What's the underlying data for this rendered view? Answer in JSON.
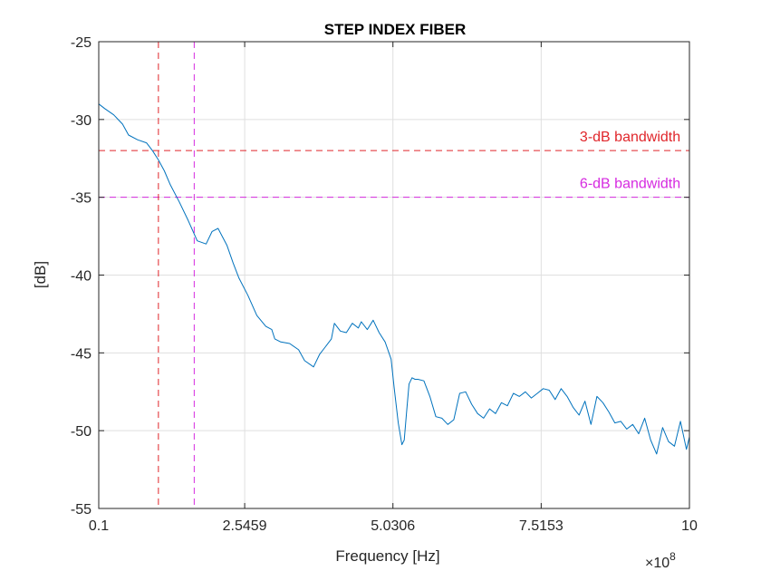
{
  "chart_data": {
    "type": "line",
    "title": "STEP INDEX FIBER",
    "xlabel": "Frequency [Hz]",
    "ylabel": "[dB]",
    "x_exponent_label": "×10",
    "x_exponent_power": "8",
    "xlim": [
      0.1,
      10
    ],
    "ylim": [
      -55,
      -25
    ],
    "xscale": 100000000,
    "grid": true,
    "x_ticks": [
      {
        "value": 0.1,
        "label": "0.1"
      },
      {
        "value": 2.5459,
        "label": "2.5459"
      },
      {
        "value": 5.0306,
        "label": "5.0306"
      },
      {
        "value": 7.5153,
        "label": "7.5153"
      },
      {
        "value": 10,
        "label": "10"
      }
    ],
    "y_ticks": [
      {
        "value": -25,
        "label": "-25"
      },
      {
        "value": -30,
        "label": "-30"
      },
      {
        "value": -35,
        "label": "-35"
      },
      {
        "value": -40,
        "label": "-40"
      },
      {
        "value": -45,
        "label": "-45"
      },
      {
        "value": -50,
        "label": "-50"
      },
      {
        "value": -55,
        "label": "-55"
      }
    ],
    "series": [
      {
        "color": "#0072bd",
        "x": [
          0.1,
          0.2,
          0.35,
          0.5,
          0.6,
          0.75,
          0.9,
          1.0,
          1.1,
          1.2,
          1.3,
          1.45,
          1.6,
          1.75,
          1.9,
          2.0,
          2.1,
          2.25,
          2.35,
          2.45,
          2.6,
          2.75,
          2.9,
          3.0,
          3.05,
          3.15,
          3.3,
          3.45,
          3.55,
          3.7,
          3.8,
          3.9,
          4.0,
          4.05,
          4.15,
          4.25,
          4.35,
          4.45,
          4.5,
          4.6,
          4.7,
          4.8,
          4.9,
          5.0,
          5.05,
          5.12,
          5.18,
          5.22,
          5.26,
          5.3,
          5.35,
          5.4,
          5.45,
          5.55,
          5.65,
          5.75,
          5.85,
          5.95,
          6.05,
          6.15,
          6.25,
          6.35,
          6.45,
          6.55,
          6.65,
          6.75,
          6.85,
          6.95,
          7.05,
          7.15,
          7.25,
          7.35,
          7.45,
          7.55,
          7.65,
          7.75,
          7.85,
          7.95,
          8.05,
          8.15,
          8.25,
          8.35,
          8.45,
          8.55,
          8.65,
          8.75,
          8.85,
          8.95,
          9.05,
          9.15,
          9.25,
          9.35,
          9.45,
          9.55,
          9.65,
          9.75,
          9.85,
          9.95,
          10.0
        ],
        "y": [
          -29.0,
          -29.3,
          -29.7,
          -30.3,
          -31.0,
          -31.3,
          -31.5,
          -32.0,
          -32.6,
          -33.3,
          -34.2,
          -35.3,
          -36.5,
          -37.8,
          -38.0,
          -37.2,
          -37.0,
          -38.1,
          -39.2,
          -40.2,
          -41.3,
          -42.6,
          -43.3,
          -43.5,
          -44.1,
          -44.3,
          -44.4,
          -44.8,
          -45.5,
          -45.9,
          -45.1,
          -44.6,
          -44.1,
          -43.1,
          -43.6,
          -43.7,
          -43.1,
          -43.4,
          -43.0,
          -43.5,
          -42.9,
          -43.7,
          -44.3,
          -45.4,
          -47.2,
          -49.5,
          -50.9,
          -50.6,
          -48.8,
          -47.0,
          -46.6,
          -46.7,
          -46.7,
          -46.8,
          -47.8,
          -49.1,
          -49.2,
          -49.6,
          -49.3,
          -47.6,
          -47.5,
          -48.3,
          -48.9,
          -49.2,
          -48.6,
          -48.9,
          -48.2,
          -48.4,
          -47.6,
          -47.8,
          -47.5,
          -47.9,
          -47.6,
          -47.3,
          -47.4,
          -48.0,
          -47.3,
          -47.8,
          -48.5,
          -49.0,
          -48.1,
          -49.6,
          -47.8,
          -48.2,
          -48.8,
          -49.5,
          -49.4,
          -49.9,
          -49.6,
          -50.2,
          -49.2,
          -50.6,
          -51.5,
          -49.8,
          -50.7,
          -51.0,
          -49.4,
          -51.2,
          -50.4
        ]
      }
    ],
    "reference_lines": [
      {
        "orientation": "horizontal",
        "value": -32,
        "color": "#e0262b"
      },
      {
        "orientation": "horizontal",
        "value": -35,
        "color": "#d62be0"
      },
      {
        "orientation": "vertical",
        "value": 1.1,
        "color": "#e0262b"
      },
      {
        "orientation": "vertical",
        "value": 1.7,
        "color": "#d62be0"
      }
    ],
    "annotations": [
      {
        "text": "3-dB bandwidth",
        "x": 9.85,
        "y": -31.4,
        "color": "#e0262b"
      },
      {
        "text": "6-dB bandwidth",
        "x": 9.85,
        "y": -34.4,
        "color": "#d62be0"
      }
    ]
  }
}
